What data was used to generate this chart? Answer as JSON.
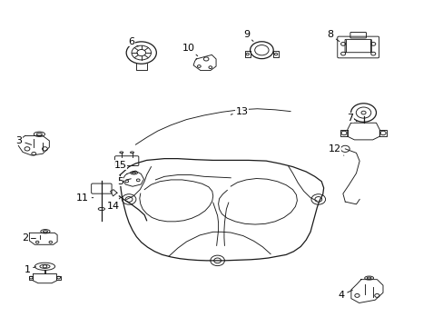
{
  "background_color": "#ffffff",
  "line_color": "#1a1a1a",
  "label_color": "#000000",
  "fig_width": 4.89,
  "fig_height": 3.6,
  "dpi": 100,
  "labels": {
    "1": [
      0.06,
      0.175,
      0.085,
      0.185
    ],
    "2": [
      0.055,
      0.27,
      0.085,
      0.27
    ],
    "3": [
      0.042,
      0.57,
      0.075,
      0.555
    ],
    "4": [
      0.77,
      0.095,
      0.8,
      0.115
    ],
    "5": [
      0.27,
      0.445,
      0.3,
      0.455
    ],
    "6": [
      0.295,
      0.875,
      0.315,
      0.855
    ],
    "7": [
      0.79,
      0.64,
      0.81,
      0.625
    ],
    "8": [
      0.745,
      0.895,
      0.77,
      0.87
    ],
    "9": [
      0.555,
      0.895,
      0.575,
      0.87
    ],
    "10": [
      0.425,
      0.855,
      0.445,
      0.83
    ],
    "11": [
      0.185,
      0.395,
      0.215,
      0.395
    ],
    "12": [
      0.755,
      0.545,
      0.78,
      0.52
    ],
    "13": [
      0.545,
      0.66,
      0.52,
      0.65
    ],
    "14": [
      0.255,
      0.37,
      0.27,
      0.395
    ],
    "15": [
      0.27,
      0.495,
      0.285,
      0.51
    ]
  }
}
